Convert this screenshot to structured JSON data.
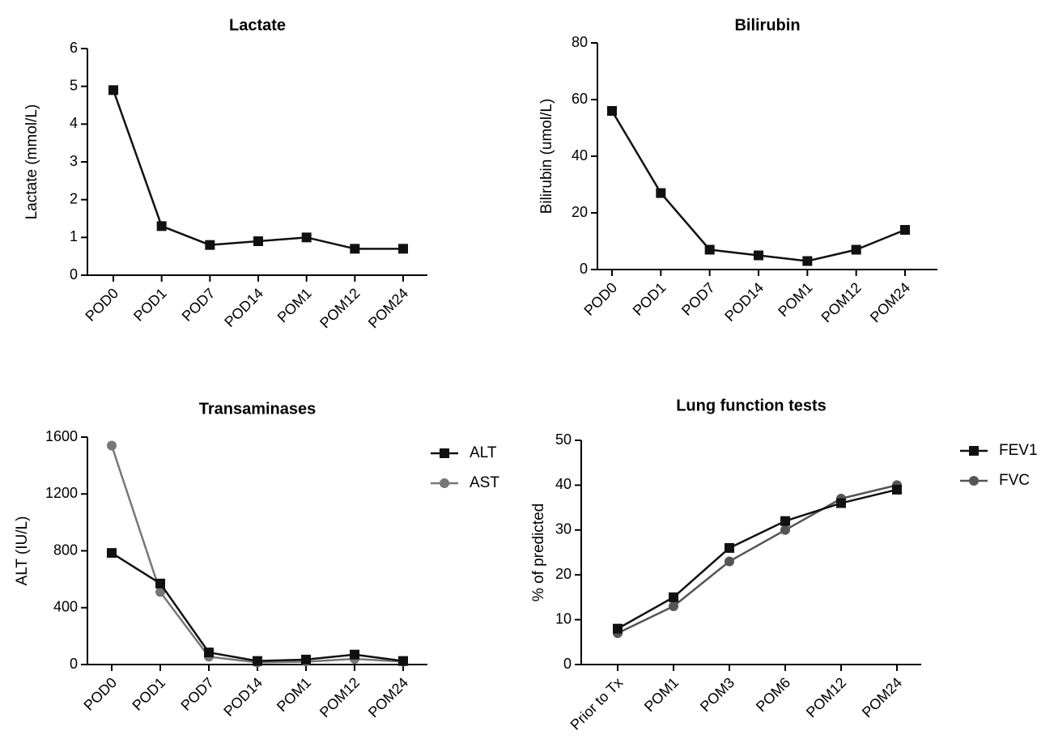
{
  "chart_data": [
    {
      "type": "line",
      "title": "Lactate",
      "xlabel": "",
      "ylabel": "Lactate (mmol/L)",
      "categories": [
        "POD0",
        "POD1",
        "POD7",
        "POD14",
        "POM1",
        "POM12",
        "POM24"
      ],
      "ylim": [
        0,
        6
      ],
      "yticks": [
        0,
        1,
        2,
        3,
        4,
        5,
        6
      ],
      "grid": false,
      "legend": null,
      "series": [
        {
          "values": [
            4.9,
            1.3,
            0.8,
            0.9,
            1.0,
            0.7,
            0.7
          ],
          "color": "#111111",
          "marker": "square"
        }
      ]
    },
    {
      "type": "line",
      "title": "Bilirubin",
      "xlabel": "",
      "ylabel": "Bilirubin (umol/L)",
      "categories": [
        "POD0",
        "POD1",
        "POD7",
        "POD14",
        "POM1",
        "POM12",
        "POM24"
      ],
      "ylim": [
        0,
        80
      ],
      "yticks": [
        0,
        20,
        40,
        60,
        80
      ],
      "grid": false,
      "legend": null,
      "series": [
        {
          "values": [
            56,
            27,
            7,
            5,
            3,
            7,
            14
          ],
          "color": "#111111",
          "marker": "square"
        }
      ]
    },
    {
      "type": "line",
      "title": "Transaminases",
      "xlabel": "",
      "ylabel": "ALT (IU/L)",
      "categories": [
        "POD0",
        "POD1",
        "POD7",
        "POD14",
        "POM1",
        "POM12",
        "POM24"
      ],
      "ylim": [
        0,
        1600
      ],
      "yticks": [
        0,
        400,
        800,
        1200,
        1600
      ],
      "grid": false,
      "legend": "right",
      "series": [
        {
          "name": "ALT",
          "values": [
            785,
            570,
            85,
            25,
            35,
            70,
            25
          ],
          "color": "#111111",
          "marker": "square"
        },
        {
          "name": "AST",
          "values": [
            1540,
            510,
            55,
            15,
            20,
            40,
            20
          ],
          "color": "#777777",
          "marker": "circle"
        }
      ]
    },
    {
      "type": "line",
      "title": "Lung function tests",
      "xlabel": "",
      "ylabel": "% of predicted",
      "categories": [
        "Prior to Tx",
        "POM1",
        "POM3",
        "POM6",
        "POM12",
        "POM24"
      ],
      "ylim": [
        0,
        50
      ],
      "yticks": [
        0,
        10,
        20,
        30,
        40,
        50
      ],
      "grid": false,
      "legend": "right",
      "series": [
        {
          "name": "FEV1",
          "values": [
            8,
            15,
            26,
            32,
            36,
            39
          ],
          "color": "#111111",
          "marker": "square"
        },
        {
          "name": "FVC",
          "values": [
            7,
            13,
            23,
            30,
            37,
            40
          ],
          "color": "#555555",
          "marker": "circle"
        }
      ]
    }
  ]
}
